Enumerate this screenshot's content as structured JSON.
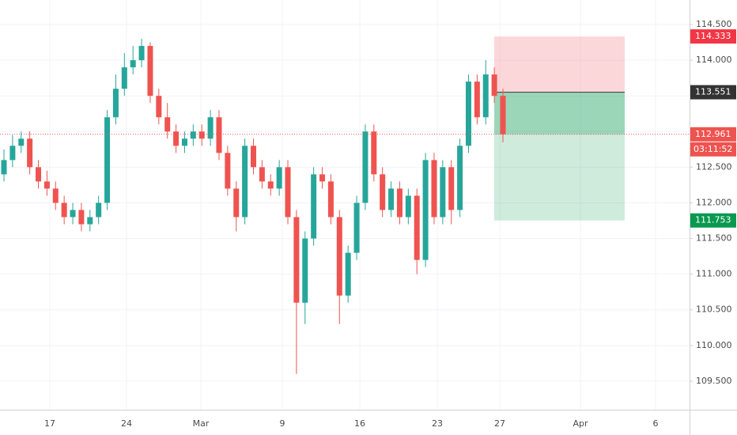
{
  "chart_data": {
    "type": "candlestick",
    "xlabels": [
      "17",
      "24",
      "Mar",
      "9",
      "16",
      "23",
      "27",
      "Apr",
      "6"
    ],
    "ylim": [
      109.1,
      114.844
    ],
    "yticks": [
      {
        "value": 109.5,
        "label": "109.500"
      },
      {
        "value": 110,
        "label": "110.000"
      },
      {
        "value": 110.5,
        "label": "110.500"
      },
      {
        "value": 111,
        "label": "111.000"
      },
      {
        "value": 111.5,
        "label": "111.500"
      },
      {
        "value": 112,
        "label": "112.000"
      },
      {
        "value": 112.5,
        "label": "112.500"
      },
      {
        "value": 113,
        "label": "113.000"
      },
      {
        "value": 113.5,
        "label": "113.500"
      },
      {
        "value": 114,
        "label": "114.000"
      },
      {
        "value": 114.5,
        "label": "114.500"
      }
    ],
    "grid": true,
    "up_color": "#26a69a",
    "down_color": "#ef5350",
    "open": [
      112.4,
      112.6,
      112.8,
      112.9,
      112.5,
      112.3,
      112.2,
      112.0,
      111.8,
      111.9,
      111.7,
      111.8,
      112.0,
      113.2,
      113.6,
      113.9,
      114.0,
      114.2,
      113.5,
      113.2,
      113.0,
      112.8,
      112.9,
      113.0,
      112.9,
      113.2,
      112.7,
      112.2,
      111.8,
      112.8,
      112.5,
      112.3,
      112.2,
      112.5,
      111.8,
      110.6,
      111.5,
      112.4,
      112.3,
      111.8,
      110.7,
      111.3,
      112.0,
      113.0,
      112.4,
      111.9,
      112.2,
      111.8,
      112.1,
      111.2,
      112.6,
      111.8,
      112.5,
      111.9,
      112.8,
      113.7,
      113.2,
      113.8,
      113.5
    ],
    "high": [
      112.75,
      112.95,
      113.0,
      113.0,
      112.6,
      112.45,
      112.3,
      112.1,
      112.0,
      112.0,
      111.9,
      112.1,
      113.3,
      113.8,
      114.1,
      114.2,
      114.3,
      114.25,
      113.6,
      113.4,
      113.1,
      113.0,
      113.1,
      113.1,
      113.3,
      113.3,
      112.8,
      112.3,
      112.9,
      112.9,
      112.6,
      112.4,
      112.6,
      112.6,
      111.9,
      111.6,
      112.5,
      112.5,
      112.4,
      111.9,
      111.4,
      112.1,
      113.1,
      113.1,
      112.5,
      112.3,
      112.3,
      112.2,
      112.2,
      112.7,
      112.7,
      112.6,
      112.6,
      112.9,
      113.8,
      113.8,
      114.0,
      113.9,
      113.6
    ],
    "low": [
      112.3,
      112.5,
      112.7,
      112.4,
      112.2,
      112.1,
      111.9,
      111.7,
      111.7,
      111.6,
      111.6,
      111.7,
      111.9,
      113.1,
      113.5,
      113.8,
      113.9,
      113.4,
      113.1,
      112.9,
      112.7,
      112.7,
      112.8,
      112.8,
      112.8,
      112.6,
      112.1,
      111.6,
      111.7,
      112.4,
      112.2,
      112.1,
      112.1,
      111.7,
      109.6,
      110.3,
      111.4,
      112.2,
      111.7,
      110.3,
      110.6,
      111.2,
      111.9,
      112.3,
      111.8,
      111.8,
      111.7,
      111.7,
      111.0,
      111.1,
      111.7,
      111.7,
      111.7,
      111.8,
      112.7,
      113.1,
      113.1,
      113.4,
      112.85
    ],
    "close": [
      112.6,
      112.8,
      112.9,
      112.5,
      112.3,
      112.2,
      112.0,
      111.8,
      111.9,
      111.7,
      111.8,
      112.0,
      113.2,
      113.6,
      113.9,
      114.0,
      114.2,
      113.5,
      113.2,
      113.0,
      112.8,
      112.9,
      113.0,
      112.9,
      113.2,
      112.7,
      112.2,
      111.8,
      112.8,
      112.5,
      112.3,
      112.2,
      112.5,
      111.8,
      110.6,
      111.5,
      112.4,
      112.3,
      111.8,
      110.7,
      111.3,
      112.0,
      113.0,
      112.4,
      111.9,
      112.2,
      111.8,
      112.1,
      111.2,
      112.6,
      111.8,
      112.5,
      111.9,
      112.8,
      113.7,
      113.2,
      113.8,
      113.5,
      112.961
    ],
    "position": {
      "stop": 114.333,
      "entry": 113.551,
      "target": 111.753,
      "stop_color": "#f23645",
      "entry_color": "#333333",
      "target_color": "#089950"
    },
    "last_price": 112.961,
    "last_price_color": "#ef5350",
    "countdown": "03:11:52"
  }
}
